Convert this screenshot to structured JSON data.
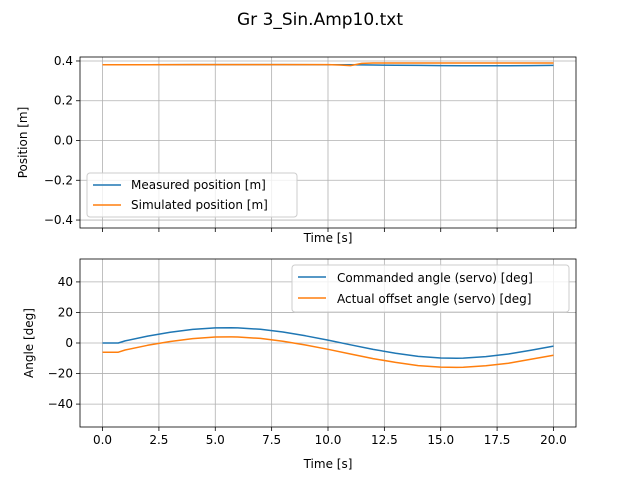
{
  "figure": {
    "title": "Gr 3_Sin.Amp10.txt"
  },
  "colors": {
    "blue": "#1f77b4",
    "orange": "#ff7f0e",
    "grid": "#b0b0b0"
  },
  "chart_data": [
    {
      "type": "line",
      "xlabel": "Time [s]",
      "ylabel": "Position [m]",
      "xlim": [
        -1,
        21
      ],
      "ylim": [
        -0.44,
        0.42
      ],
      "xticks": [
        0,
        2.5,
        5,
        7.5,
        10,
        12.5,
        15,
        17.5,
        20
      ],
      "xtick_labels_visible": false,
      "yticks": [
        -0.4,
        -0.2,
        0.0,
        0.2,
        0.4
      ],
      "ytick_labels": [
        "−0.4",
        "−0.2",
        "0.0",
        "0.2",
        "0.4"
      ],
      "grid": true,
      "legend": "lower-left",
      "series": [
        {
          "name": "Measured position [m]",
          "color": "#1f77b4",
          "x": [
            0,
            2,
            4,
            6,
            8,
            10,
            11,
            12,
            13,
            14,
            15,
            16,
            17,
            18,
            19,
            20
          ],
          "y": [
            0.381,
            0.381,
            0.382,
            0.382,
            0.382,
            0.381,
            0.381,
            0.38,
            0.379,
            0.378,
            0.377,
            0.376,
            0.376,
            0.376,
            0.377,
            0.378
          ]
        },
        {
          "name": "Simulated position [m]",
          "color": "#ff7f0e",
          "x": [
            0,
            2,
            4,
            6,
            8,
            10,
            10.5,
            11,
            11.5,
            12,
            14,
            16,
            18,
            20
          ],
          "y": [
            0.381,
            0.381,
            0.382,
            0.382,
            0.382,
            0.382,
            0.38,
            0.377,
            0.388,
            0.39,
            0.39,
            0.39,
            0.39,
            0.39
          ]
        }
      ]
    },
    {
      "type": "line",
      "xlabel": "Time [s]",
      "ylabel": "Angle [deg]",
      "xlim": [
        -1,
        21
      ],
      "ylim": [
        -55,
        55
      ],
      "xticks": [
        0,
        2.5,
        5,
        7.5,
        10,
        12.5,
        15,
        17.5,
        20
      ],
      "xtick_labels": [
        "0.0",
        "2.5",
        "5.0",
        "7.5",
        "10.0",
        "12.5",
        "15.0",
        "17.5",
        "20.0"
      ],
      "yticks": [
        -40,
        -20,
        0,
        20,
        40
      ],
      "ytick_labels": [
        "−40",
        "−20",
        "0",
        "20",
        "40"
      ],
      "grid": true,
      "legend": "upper-right",
      "series": [
        {
          "name": "Commanded angle (servo) [deg]",
          "color": "#1f77b4",
          "x": [
            0,
            0.7,
            1,
            2,
            3,
            4,
            5,
            5.7,
            6,
            7,
            8,
            9,
            10,
            11,
            12,
            13,
            14,
            15,
            15.7,
            16,
            17,
            18,
            19,
            20
          ],
          "y": [
            0,
            0,
            1.4,
            4.5,
            7.0,
            8.9,
            9.9,
            10.0,
            9.9,
            9.0,
            7.2,
            4.7,
            1.9,
            -1.2,
            -4.2,
            -6.7,
            -8.8,
            -9.8,
            -10.0,
            -9.9,
            -8.9,
            -7.2,
            -4.7,
            -2.0
          ]
        },
        {
          "name": "Actual offset angle (servo) [deg]",
          "color": "#ff7f0e",
          "x": [
            0,
            0.7,
            1,
            2,
            3,
            4,
            5,
            5.7,
            6,
            7,
            8,
            9,
            10,
            11,
            12,
            13,
            14,
            15,
            15.7,
            16,
            17,
            18,
            19,
            20
          ],
          "y": [
            -6,
            -6,
            -4.6,
            -1.5,
            1.0,
            2.9,
            3.9,
            4.0,
            3.9,
            3.0,
            1.2,
            -1.3,
            -4.1,
            -7.2,
            -10.2,
            -12.7,
            -14.8,
            -15.8,
            -16.0,
            -15.9,
            -14.9,
            -13.2,
            -10.7,
            -8.0
          ]
        }
      ]
    }
  ]
}
